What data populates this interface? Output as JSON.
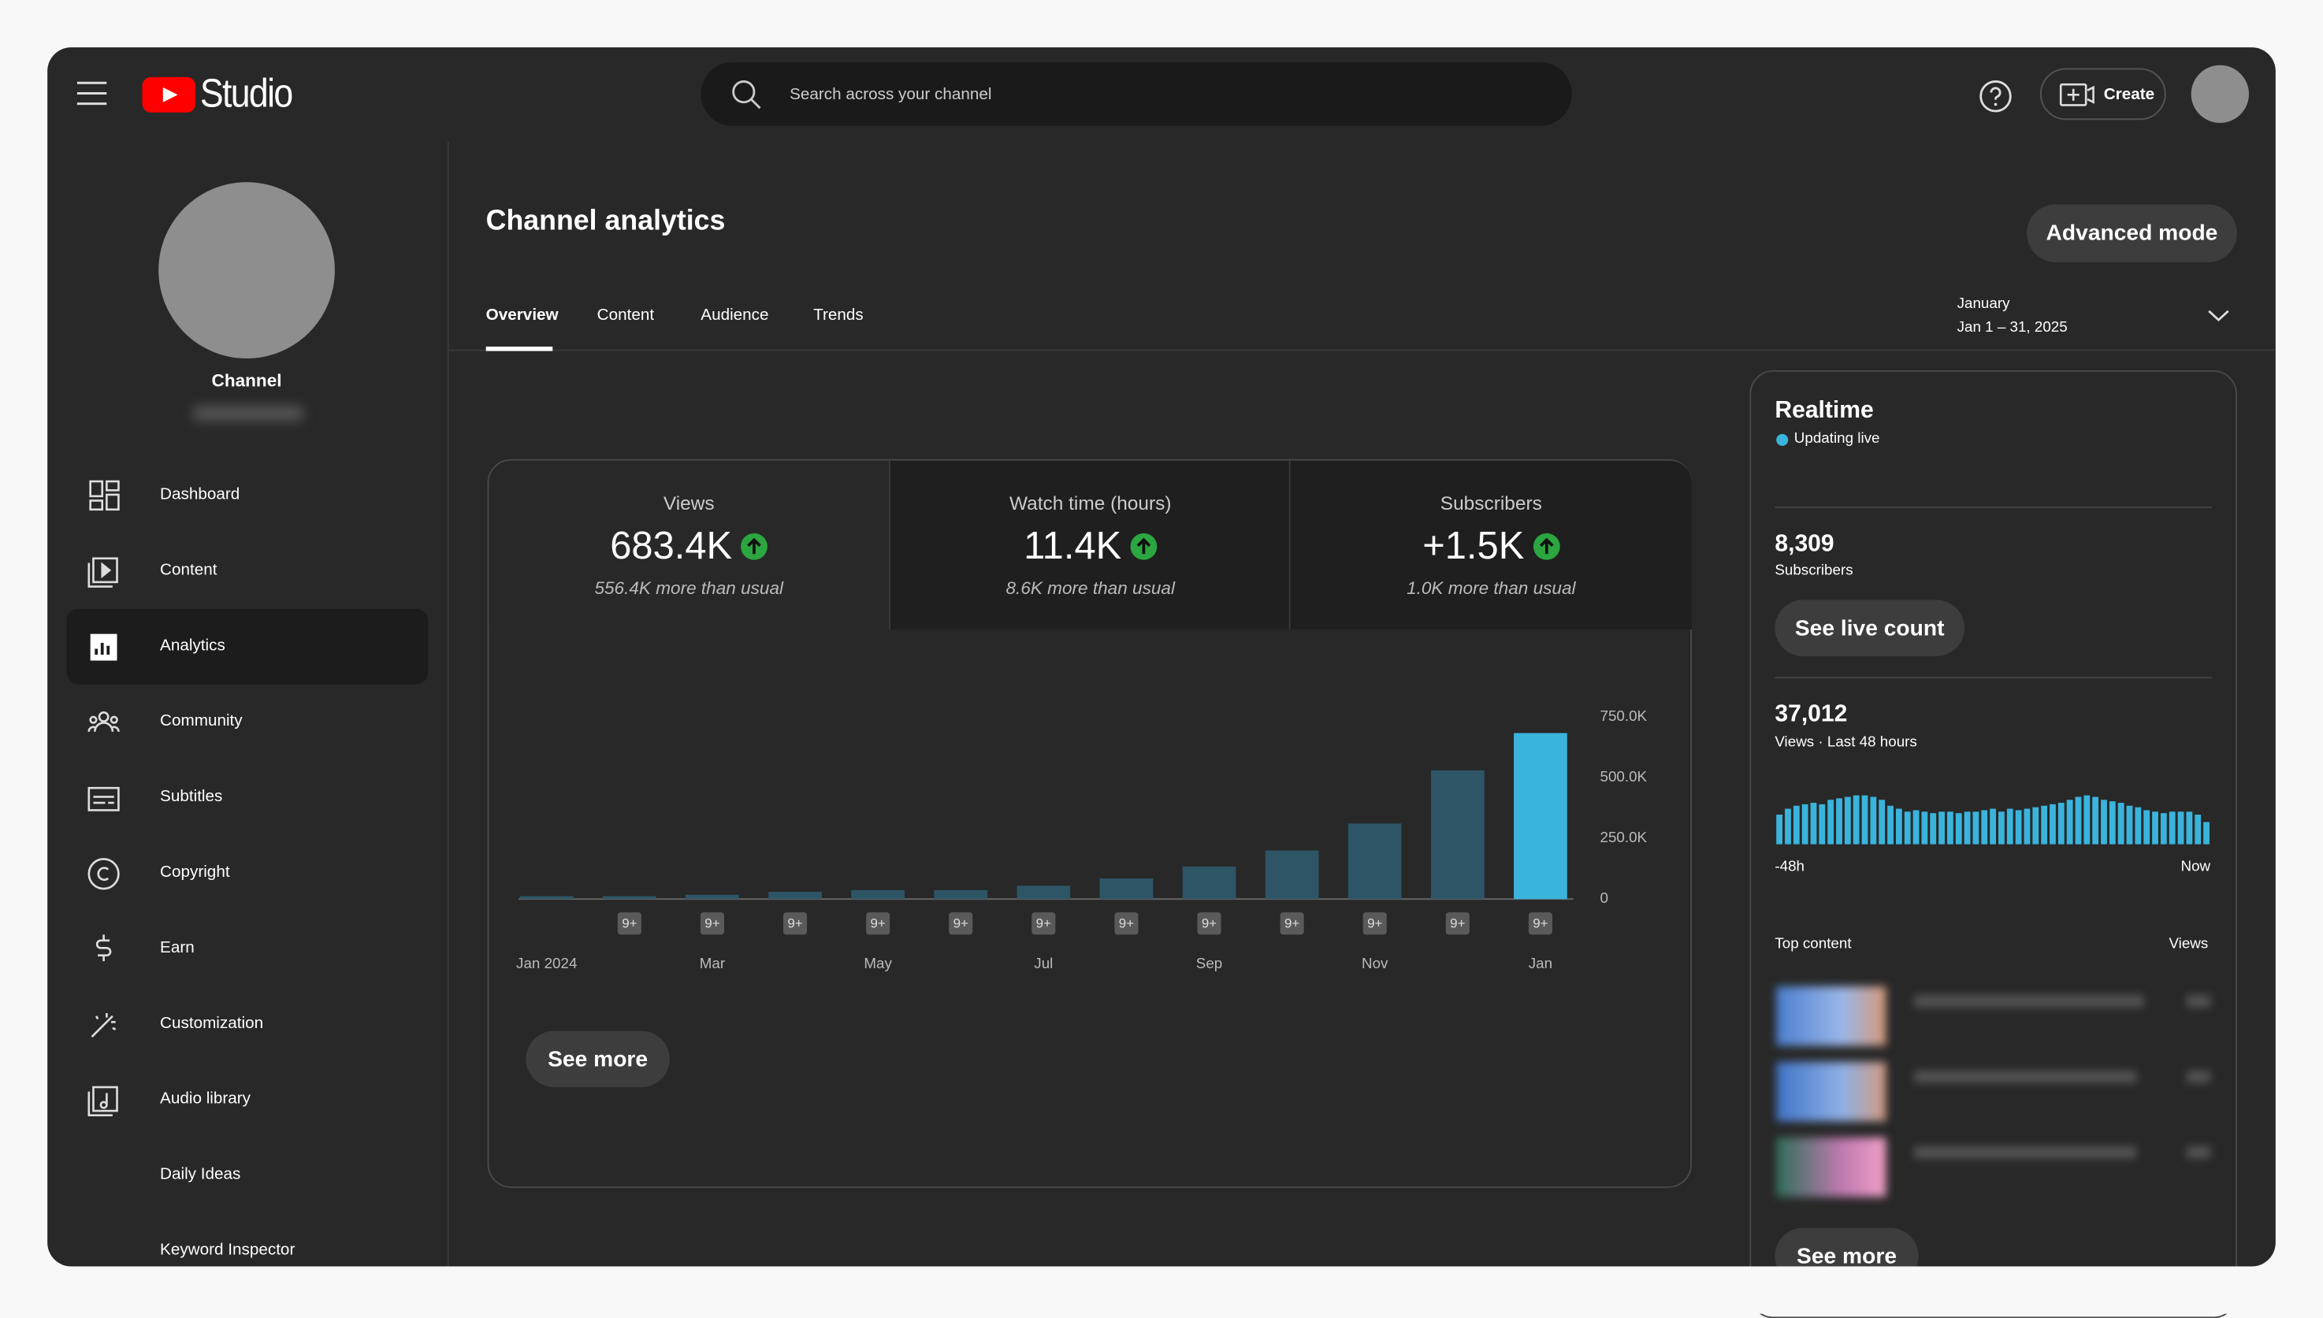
{
  "header": {
    "logo": "Studio",
    "search_placeholder": "Search across your channel",
    "create": "Create"
  },
  "sidebar": {
    "channel": "Channel",
    "items": [
      "Dashboard",
      "Content",
      "Analytics",
      "Community",
      "Subtitles",
      "Copyright",
      "Earn",
      "Customization",
      "Audio library",
      "Daily Ideas",
      "Keyword Inspector"
    ]
  },
  "page": {
    "title": "Channel analytics",
    "advanced_mode": "Advanced mode",
    "tabs": [
      "Overview",
      "Content",
      "Audience",
      "Trends"
    ],
    "date_label": "January",
    "date_range": "Jan 1 – 31, 2025"
  },
  "metrics": [
    {
      "label": "Views",
      "value": "683.4K",
      "note": "556.4K more than usual"
    },
    {
      "label": "Watch time (hours)",
      "value": "11.4K",
      "note": "8.6K more than usual"
    },
    {
      "label": "Subscribers",
      "value": "+1.5K",
      "note": "1.0K more than usual"
    }
  ],
  "chart_data": {
    "type": "bar",
    "categories": [
      "Jan 2024",
      null,
      "Mar",
      null,
      "May",
      null,
      "Jul",
      null,
      "Sep",
      null,
      "Nov",
      null,
      "Jan"
    ],
    "values": [
      12000,
      12000,
      18000,
      30000,
      37000,
      37000,
      55000,
      85000,
      134000,
      200000,
      311000,
      530000,
      683400
    ],
    "colors": [
      "#2d5566",
      "#2d5566",
      "#2d5566",
      "#2d5566",
      "#2d5566",
      "#2d5566",
      "#2d5566",
      "#2d5566",
      "#2d5566",
      "#2d5566",
      "#2d5566",
      "#2d5566",
      "#3ab4dc"
    ],
    "badges": [
      null,
      "9+",
      "9+",
      "9+",
      "9+",
      "9+",
      "9+",
      "9+",
      "9+",
      "9+",
      "9+",
      "9+",
      "9+"
    ],
    "ylim": [
      0,
      750000
    ],
    "yticks": [
      0,
      {
        "value": 250000,
        "label": "250.0K"
      },
      {
        "value": 500000,
        "label": "500.0K"
      },
      {
        "value": 750000,
        "label": "750.0K"
      }
    ]
  },
  "see_more": "See more",
  "realtime": {
    "title": "Realtime",
    "status": "Updating live",
    "subscribers": "8,309",
    "subscribers_label": "Subscribers",
    "live_button": "See live count",
    "views": "37,012",
    "views_label": "Views · Last 48 hours",
    "bars": {
      "type": "bar",
      "color": "#3ab4dc",
      "values": [
        20,
        24,
        26,
        27,
        28,
        27,
        30,
        31,
        32,
        33,
        33,
        32,
        30,
        26,
        24,
        22,
        23,
        22,
        21,
        22,
        22,
        21,
        22,
        22,
        23,
        24,
        22,
        24,
        23,
        24,
        25,
        26,
        27,
        28,
        30,
        32,
        33,
        32,
        30,
        29,
        28,
        26,
        25,
        23,
        22,
        21,
        22,
        22,
        22,
        20,
        15
      ]
    },
    "start_label": "-48h",
    "end_label": "Now",
    "top_content": "Top content",
    "views_header": "Views",
    "see_more": "See more"
  }
}
